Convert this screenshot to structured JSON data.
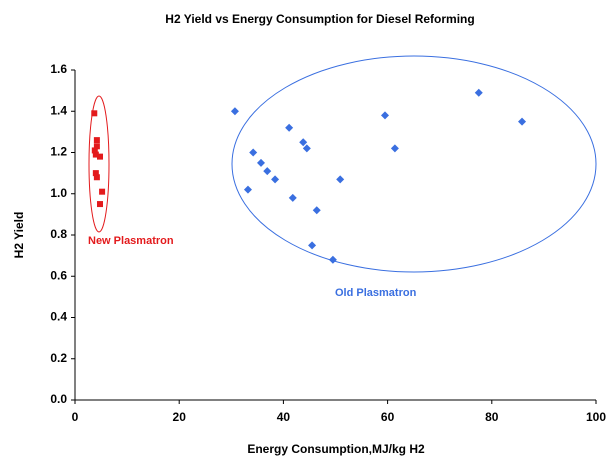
{
  "chart_data": {
    "type": "scatter",
    "title": "H2 Yield vs Energy Consumption for Diesel Reforming",
    "x_label": "Energy Consumption,MJ/kg H2",
    "y_label": "H2 Yield",
    "xlim": [
      0,
      100
    ],
    "xticks": [
      0,
      20,
      40,
      60,
      80,
      100
    ],
    "ylim": [
      0,
      1.6
    ],
    "yticks": [
      {
        "value": 0,
        "label": "0.0"
      },
      0.2,
      0.4,
      0.6,
      0.8,
      {
        "value": 1,
        "label": "1.0"
      },
      1.2,
      1.4,
      1.6
    ],
    "grid": false,
    "annotations": [
      "New Plasmatron",
      "Old Plasmatron"
    ],
    "series": [
      {
        "name": "New Plasmatron",
        "color": "#e31a1c",
        "marker": "square",
        "x": [
          3.7,
          4.2,
          4.2,
          3.8,
          4.0,
          4.8,
          4.0,
          4.2,
          5.2,
          4.8
        ],
        "values": [
          1.39,
          1.26,
          1.23,
          1.21,
          1.19,
          1.18,
          1.1,
          1.08,
          1.01,
          0.95
        ]
      },
      {
        "name": "Old Plasmatron",
        "color": "#3a6fe0",
        "marker": "diamond",
        "x": [
          30.7,
          34.2,
          35.7,
          36.9,
          38.4,
          33.2,
          41.1,
          43.8,
          44.5,
          41.8,
          46.4,
          45.5,
          50.9,
          49.5,
          59.5,
          61.4,
          77.5,
          85.8
        ],
        "values": [
          1.4,
          1.2,
          1.15,
          1.11,
          1.07,
          1.02,
          1.32,
          1.25,
          1.22,
          0.98,
          0.92,
          0.75,
          1.07,
          0.68,
          1.38,
          1.22,
          1.49,
          1.35
        ]
      }
    ]
  }
}
